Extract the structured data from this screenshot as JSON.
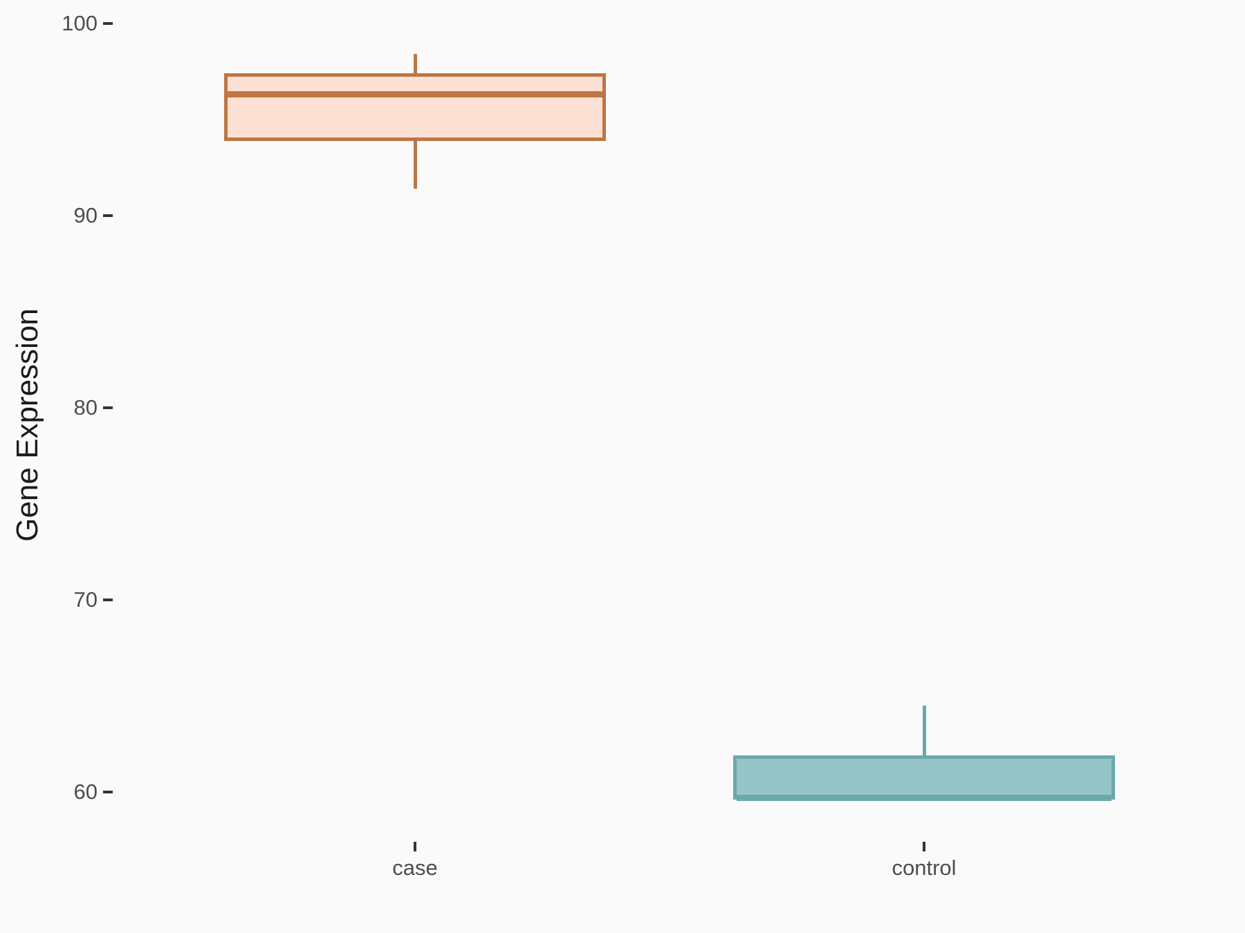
{
  "chart_data": {
    "type": "box",
    "title": "",
    "xlabel": "",
    "ylabel": "Gene Expression",
    "categories": [
      "case",
      "control"
    ],
    "yticks": [
      100,
      90,
      80,
      70,
      60
    ],
    "ylim": [
      57,
      101
    ],
    "grid": false,
    "legend": "none",
    "orientation": "vertical",
    "series": [
      {
        "name": "case",
        "min": 91.4,
        "q1": 93.9,
        "median": 96.3,
        "q3": 97.4,
        "max": 98.4,
        "fill": "#FCE0D3",
        "stroke": "#BE7645"
      },
      {
        "name": "control",
        "min": 59.6,
        "q1": 59.6,
        "median": 59.7,
        "q3": 61.9,
        "max": 64.5,
        "fill": "#97C4C8",
        "stroke": "#6AA8AE"
      }
    ],
    "colors": {
      "background": "#FAFAFA",
      "tick_label": "#4D4D4D",
      "tick_mark": "#333333",
      "axis_title": "#1A1A1A"
    }
  }
}
